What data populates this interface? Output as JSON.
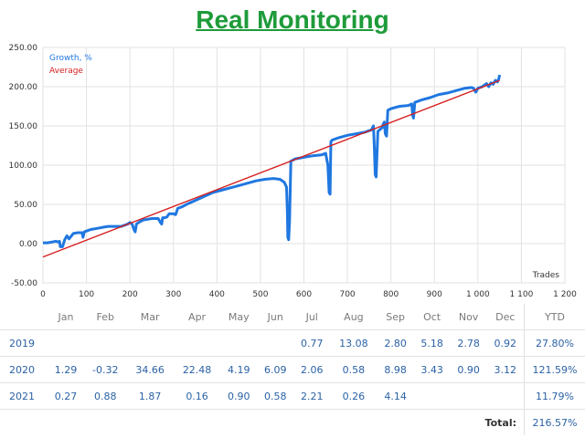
{
  "title": "Real Monitoring",
  "chart_data": {
    "type": "line",
    "xlabel": "Trades",
    "ylabel": "",
    "xlim": [
      0,
      1200
    ],
    "ylim": [
      -50,
      250
    ],
    "x_ticks": [
      "0",
      "100",
      "200",
      "300",
      "400",
      "500",
      "600",
      "700",
      "800",
      "900",
      "1 000",
      "1 100",
      "1 200"
    ],
    "y_ticks": [
      "-50.00",
      "0.00",
      "50.00",
      "100.00",
      "150.00",
      "200.00",
      "250.00"
    ],
    "grid": true,
    "legend_position": "top-left",
    "series": [
      {
        "name": "Growth, %",
        "color": "#1f77e0",
        "x": [
          0,
          10,
          20,
          30,
          35,
          38,
          40,
          45,
          50,
          55,
          60,
          70,
          80,
          90,
          92,
          95,
          100,
          110,
          120,
          130,
          140,
          150,
          160,
          180,
          195,
          200,
          205,
          210,
          212,
          215,
          220,
          230,
          250,
          265,
          270,
          273,
          275,
          280,
          285,
          290,
          300,
          305,
          310,
          320,
          330,
          350,
          370,
          390,
          410,
          430,
          450,
          470,
          490,
          510,
          530,
          545,
          555,
          560,
          562,
          563,
          565,
          567,
          570,
          580,
          600,
          620,
          640,
          650,
          655,
          658,
          660,
          662,
          665,
          680,
          700,
          720,
          740,
          755,
          760,
          762,
          764,
          766,
          770,
          780,
          782,
          785,
          787,
          790,
          793,
          800,
          820,
          840,
          848,
          850,
          852,
          855,
          870,
          890,
          910,
          930,
          950,
          970,
          985,
          990,
          995,
          1000,
          1010,
          1020,
          1025,
          1030,
          1035,
          1040,
          1045,
          1048,
          1050
        ],
        "y": [
          1,
          1,
          2,
          3,
          2,
          3,
          -4,
          -4,
          5,
          10,
          6,
          13,
          14,
          14,
          8,
          15,
          16,
          18,
          19,
          20,
          21,
          22,
          22,
          22,
          25,
          27,
          25,
          17,
          15,
          25,
          27,
          30,
          32,
          32,
          27,
          25,
          33,
          33,
          34,
          38,
          38,
          37,
          45,
          47,
          50,
          55,
          60,
          65,
          68,
          71,
          74,
          77,
          80,
          82,
          83,
          82,
          78,
          72,
          40,
          8,
          5,
          30,
          105,
          108,
          110,
          112,
          113,
          115,
          100,
          65,
          63,
          130,
          132,
          135,
          138,
          140,
          142,
          145,
          150,
          120,
          88,
          85,
          143,
          148,
          152,
          155,
          140,
          137,
          170,
          172,
          175,
          176,
          178,
          163,
          160,
          180,
          183,
          186,
          190,
          192,
          195,
          198,
          199,
          198,
          193,
          198,
          200,
          204,
          200,
          205,
          203,
          208,
          206,
          210,
          215
        ]
      },
      {
        "name": "Average",
        "color": "#d62020",
        "x": [
          0,
          1050
        ],
        "y": [
          -17,
          208
        ]
      }
    ]
  },
  "table": {
    "headers": [
      "",
      "Jan",
      "Feb",
      "Mar",
      "Apr",
      "May",
      "Jun",
      "Jul",
      "Aug",
      "Sep",
      "Oct",
      "Nov",
      "Dec",
      "YTD"
    ],
    "rows": [
      {
        "year": "2019",
        "months": [
          "",
          "",
          "",
          "",
          "",
          "",
          "0.77",
          "13.08",
          "2.80",
          "5.18",
          "2.78",
          "0.92"
        ],
        "ytd": "27.80%"
      },
      {
        "year": "2020",
        "months": [
          "1.29",
          "-0.32",
          "34.66",
          "22.48",
          "4.19",
          "6.09",
          "2.06",
          "0.58",
          "8.98",
          "3.43",
          "0.90",
          "3.12"
        ],
        "ytd": "121.59%"
      },
      {
        "year": "2021",
        "months": [
          "0.27",
          "0.88",
          "1.87",
          "0.16",
          "0.90",
          "0.58",
          "2.21",
          "0.26",
          "4.14",
          "",
          "",
          ""
        ],
        "ytd": "11.79%"
      }
    ],
    "total_label": "Total:",
    "total_value": "216.57%"
  }
}
